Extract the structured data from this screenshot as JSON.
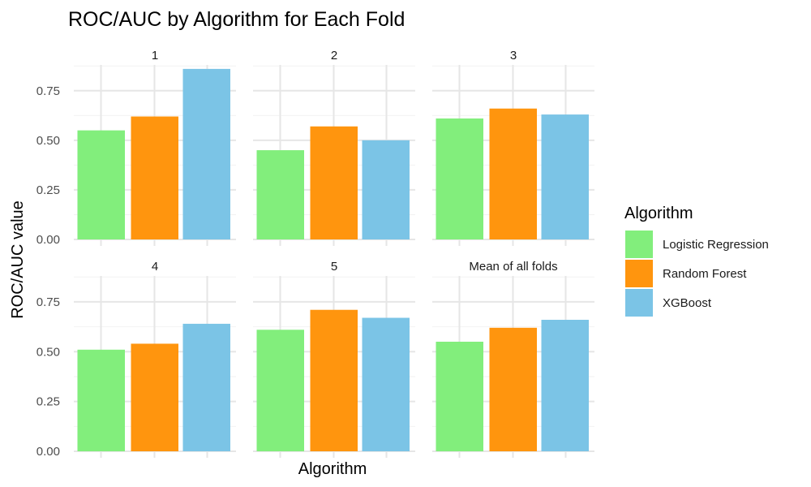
{
  "chart_data": {
    "type": "bar",
    "title": "ROC/AUC by Algorithm for Each Fold",
    "xlabel": "Algorithm",
    "ylabel": "ROC/AUC value",
    "ylim": [
      0,
      0.88
    ],
    "yticks": [
      "0.00",
      "0.25",
      "0.50",
      "0.75"
    ],
    "ytick_values": [
      0,
      0.25,
      0.5,
      0.75
    ],
    "grid": true,
    "legend": {
      "title": "Algorithm",
      "placement": "right",
      "entries": [
        "Logistic Regression",
        "Random Forest",
        "XGBoost"
      ]
    },
    "categories": [
      "Logistic Regression",
      "Random Forest",
      "XGBoost"
    ],
    "colors": [
      "#82EE7C",
      "#FF950E",
      "#7BC4E6"
    ],
    "facets": [
      {
        "label": "1",
        "values": [
          0.55,
          0.62,
          0.86
        ]
      },
      {
        "label": "2",
        "values": [
          0.45,
          0.57,
          0.5
        ]
      },
      {
        "label": "3",
        "values": [
          0.61,
          0.66,
          0.63
        ]
      },
      {
        "label": "4",
        "values": [
          0.51,
          0.54,
          0.64
        ]
      },
      {
        "label": "5",
        "values": [
          0.61,
          0.71,
          0.67
        ]
      },
      {
        "label": "Mean of all folds",
        "values": [
          0.55,
          0.62,
          0.66
        ]
      }
    ]
  }
}
